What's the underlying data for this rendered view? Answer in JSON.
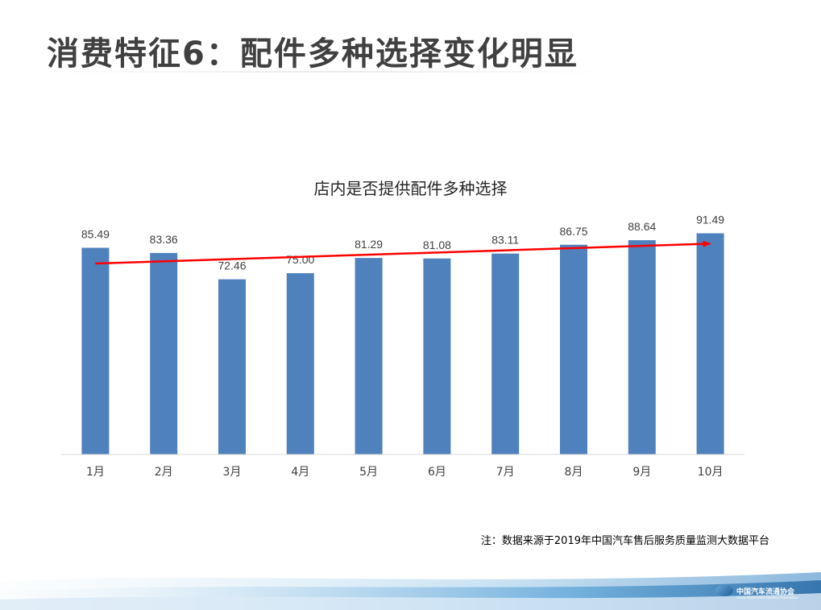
{
  "slide": {
    "title": "消费特征6：配件多种选择变化明显",
    "source_note": "注：数据来源于2019年中国汽车售后服务质量监测大数据平台",
    "logo_text": "中国汽车流通协会",
    "logo_subtext": "China Automobile Dealers Association"
  },
  "colors": {
    "bar": "#4f81bd",
    "trend_arrow": "#ff0000",
    "axis": "#d9d9d9",
    "title_text": "#404040"
  },
  "chart_data": {
    "type": "bar",
    "title": "店内是否提供配件多种选择",
    "categories": [
      "1月",
      "2月",
      "3月",
      "4月",
      "5月",
      "6月",
      "7月",
      "8月",
      "9月",
      "10月"
    ],
    "values": [
      85.49,
      83.36,
      72.46,
      75.0,
      81.29,
      81.08,
      83.11,
      86.75,
      88.64,
      91.49
    ],
    "data_labels": [
      "85.49",
      "83.36",
      "72.46",
      "75.00",
      "81.29",
      "81.08",
      "83.11",
      "86.75",
      "88.64",
      "91.49"
    ],
    "trend_arrow": {
      "from_value": 79.0,
      "to_value": 87.2,
      "from_category": "1月",
      "to_category": "10月"
    },
    "xlabel": "",
    "ylabel": "",
    "legend": "none",
    "grid": false
  }
}
